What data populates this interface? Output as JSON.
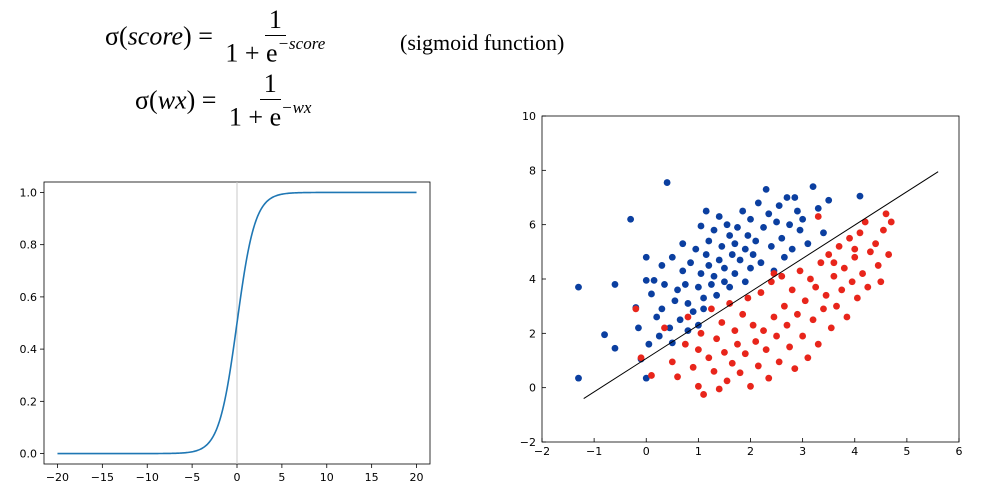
{
  "formulas": {
    "f1": {
      "lhs_prefix": "σ(",
      "lhs_var": "score",
      "lhs_suffix": ") =",
      "num": "1",
      "den_base": "1 + e",
      "den_exp": "−score"
    },
    "f2": {
      "lhs_prefix": "σ(",
      "lhs_var": "wx",
      "lhs_suffix": ") =",
      "num": "1",
      "den_base": "1 + e",
      "den_exp": "−wx"
    },
    "note": "(sigmoid function)"
  },
  "chart_data": [
    {
      "type": "line",
      "title": "",
      "xlabel": "",
      "ylabel": "",
      "xlim": [
        -21.5,
        21.5
      ],
      "ylim": [
        -0.04,
        1.04
      ],
      "xticks": [
        -20,
        -15,
        -10,
        -5,
        0,
        5,
        10,
        15,
        20
      ],
      "yticks": [
        0.0,
        0.2,
        0.4,
        0.6,
        0.8,
        1.0
      ],
      "xtick_labels": [
        "−20",
        "−15",
        "−10",
        "−5",
        "0",
        "5",
        "10",
        "15",
        "20"
      ],
      "ytick_labels": [
        "0.0",
        "0.2",
        "0.4",
        "0.6",
        "0.8",
        "1.0"
      ],
      "function": "sigmoid",
      "x_range": [
        -20,
        20
      ],
      "vertical_reference_line_x": 0,
      "line_color": "#1f77b4",
      "reference_line_color": "#c8c8c8",
      "grid": false
    },
    {
      "type": "scatter",
      "title": "",
      "xlabel": "",
      "ylabel": "",
      "xlim": [
        -2,
        6
      ],
      "ylim": [
        -2,
        10
      ],
      "xticks": [
        -2,
        -1,
        0,
        1,
        2,
        3,
        4,
        5,
        6
      ],
      "yticks": [
        -2,
        0,
        2,
        4,
        6,
        8,
        10
      ],
      "xtick_labels": [
        "−2",
        "−1",
        "0",
        "1",
        "2",
        "3",
        "4",
        "5",
        "6"
      ],
      "ytick_labels": [
        "−2",
        "0",
        "2",
        "4",
        "6",
        "8",
        "10"
      ],
      "grid": false,
      "decision_boundary": {
        "x": [
          -1.2,
          5.6
        ],
        "y": [
          -0.4,
          7.95
        ],
        "color": "#000000"
      },
      "series": [
        {
          "color": "#0b3fa0",
          "points": [
            [
              -1.3,
              3.7
            ],
            [
              -1.3,
              0.35
            ],
            [
              -0.8,
              1.95
            ],
            [
              -0.6,
              1.45
            ],
            [
              -0.6,
              3.8
            ],
            [
              -0.3,
              6.2
            ],
            [
              -0.2,
              2.95
            ],
            [
              -0.15,
              2.2
            ],
            [
              -0.1,
              1.05
            ],
            [
              0.0,
              0.35
            ],
            [
              0.0,
              3.95
            ],
            [
              0.0,
              4.8
            ],
            [
              0.05,
              1.6
            ],
            [
              0.1,
              3.45
            ],
            [
              0.15,
              3.95
            ],
            [
              0.2,
              2.6
            ],
            [
              0.25,
              1.9
            ],
            [
              0.3,
              4.5
            ],
            [
              0.3,
              2.9
            ],
            [
              0.35,
              3.8
            ],
            [
              0.4,
              7.55
            ],
            [
              0.45,
              2.2
            ],
            [
              0.5,
              4.8
            ],
            [
              0.5,
              1.65
            ],
            [
              0.55,
              3.2
            ],
            [
              0.6,
              3.6
            ],
            [
              0.65,
              2.5
            ],
            [
              0.7,
              5.3
            ],
            [
              0.7,
              4.3
            ],
            [
              0.75,
              3.8
            ],
            [
              0.8,
              3.1
            ],
            [
              0.8,
              2.1
            ],
            [
              0.85,
              4.6
            ],
            [
              0.9,
              2.8
            ],
            [
              0.95,
              5.1
            ],
            [
              1.0,
              3.7
            ],
            [
              1.0,
              2.3
            ],
            [
              1.05,
              5.95
            ],
            [
              1.05,
              4.2
            ],
            [
              1.1,
              3.3
            ],
            [
              1.1,
              2.9
            ],
            [
              1.15,
              4.9
            ],
            [
              1.15,
              6.5
            ],
            [
              1.2,
              5.4
            ],
            [
              1.2,
              4.5
            ],
            [
              1.25,
              3.8
            ],
            [
              1.3,
              4.1
            ],
            [
              1.3,
              5.8
            ],
            [
              1.35,
              3.4
            ],
            [
              1.4,
              4.7
            ],
            [
              1.4,
              6.3
            ],
            [
              1.45,
              5.2
            ],
            [
              1.5,
              3.9
            ],
            [
              1.5,
              4.4
            ],
            [
              1.55,
              6.0
            ],
            [
              1.6,
              5.6
            ],
            [
              1.6,
              3.7
            ],
            [
              1.65,
              4.9
            ],
            [
              1.7,
              5.3
            ],
            [
              1.7,
              4.2
            ],
            [
              1.75,
              5.9
            ],
            [
              1.8,
              4.7
            ],
            [
              1.85,
              6.5
            ],
            [
              1.9,
              5.1
            ],
            [
              1.9,
              3.9
            ],
            [
              1.95,
              5.6
            ],
            [
              2.0,
              4.4
            ],
            [
              2.0,
              6.2
            ],
            [
              2.05,
              4.9
            ],
            [
              2.1,
              5.4
            ],
            [
              2.15,
              6.8
            ],
            [
              2.2,
              4.6
            ],
            [
              2.25,
              5.9
            ],
            [
              2.3,
              7.3
            ],
            [
              2.35,
              6.4
            ],
            [
              2.4,
              5.2
            ],
            [
              2.45,
              4.3
            ],
            [
              2.5,
              6.1
            ],
            [
              2.55,
              6.7
            ],
            [
              2.6,
              5.5
            ],
            [
              2.65,
              4.8
            ],
            [
              2.7,
              7.0
            ],
            [
              2.75,
              6.0
            ],
            [
              2.8,
              5.1
            ],
            [
              2.85,
              7.0
            ],
            [
              2.9,
              6.5
            ],
            [
              2.95,
              5.8
            ],
            [
              3.0,
              6.2
            ],
            [
              3.1,
              5.3
            ],
            [
              3.2,
              7.4
            ],
            [
              3.3,
              6.6
            ],
            [
              3.4,
              5.7
            ],
            [
              3.5,
              6.9
            ],
            [
              4.1,
              7.05
            ]
          ]
        },
        {
          "color": "#e8251b",
          "points": [
            [
              -0.2,
              2.9
            ],
            [
              -0.1,
              1.1
            ],
            [
              0.1,
              0.45
            ],
            [
              0.35,
              2.2
            ],
            [
              0.5,
              0.95
            ],
            [
              0.6,
              0.4
            ],
            [
              0.75,
              1.6
            ],
            [
              0.8,
              2.6
            ],
            [
              0.9,
              0.75
            ],
            [
              1.0,
              1.4
            ],
            [
              1.0,
              0.05
            ],
            [
              1.05,
              2.0
            ],
            [
              1.1,
              -0.25
            ],
            [
              1.2,
              1.1
            ],
            [
              1.25,
              2.9
            ],
            [
              1.3,
              0.6
            ],
            [
              1.35,
              1.8
            ],
            [
              1.4,
              -0.05
            ],
            [
              1.45,
              2.4
            ],
            [
              1.5,
              1.3
            ],
            [
              1.55,
              0.25
            ],
            [
              1.6,
              3.1
            ],
            [
              1.65,
              0.9
            ],
            [
              1.7,
              2.1
            ],
            [
              1.75,
              1.6
            ],
            [
              1.8,
              0.55
            ],
            [
              1.85,
              2.7
            ],
            [
              1.9,
              1.25
            ],
            [
              1.95,
              3.3
            ],
            [
              2.0,
              0.05
            ],
            [
              2.05,
              2.3
            ],
            [
              2.1,
              1.7
            ],
            [
              2.15,
              0.8
            ],
            [
              2.2,
              3.5
            ],
            [
              2.25,
              2.1
            ],
            [
              2.3,
              1.4
            ],
            [
              2.35,
              0.35
            ],
            [
              2.4,
              3.9
            ],
            [
              2.45,
              2.6
            ],
            [
              2.5,
              1.9
            ],
            [
              2.55,
              0.95
            ],
            [
              2.6,
              4.1
            ],
            [
              2.65,
              3.0
            ],
            [
              2.7,
              2.3
            ],
            [
              2.75,
              1.5
            ],
            [
              2.8,
              3.6
            ],
            [
              2.85,
              0.7
            ],
            [
              2.9,
              2.7
            ],
            [
              2.95,
              4.3
            ],
            [
              3.0,
              1.9
            ],
            [
              3.05,
              3.2
            ],
            [
              3.1,
              1.1
            ],
            [
              3.15,
              4.0
            ],
            [
              3.2,
              2.5
            ],
            [
              3.25,
              3.7
            ],
            [
              3.3,
              1.6
            ],
            [
              3.35,
              4.6
            ],
            [
              3.4,
              2.9
            ],
            [
              3.45,
              3.4
            ],
            [
              3.5,
              4.9
            ],
            [
              3.55,
              2.2
            ],
            [
              3.6,
              4.1
            ],
            [
              3.65,
              3.0
            ],
            [
              3.7,
              5.2
            ],
            [
              3.75,
              3.6
            ],
            [
              3.8,
              4.4
            ],
            [
              3.85,
              2.6
            ],
            [
              3.9,
              5.5
            ],
            [
              3.95,
              3.9
            ],
            [
              4.0,
              4.8
            ],
            [
              4.05,
              3.3
            ],
            [
              4.1,
              5.7
            ],
            [
              4.15,
              4.2
            ],
            [
              4.2,
              6.1
            ],
            [
              4.25,
              3.7
            ],
            [
              4.3,
              5.0
            ],
            [
              4.4,
              5.3
            ],
            [
              4.45,
              4.5
            ],
            [
              4.5,
              3.9
            ],
            [
              4.55,
              5.8
            ],
            [
              4.6,
              6.4
            ],
            [
              4.65,
              4.9
            ],
            [
              4.7,
              6.1
            ],
            [
              3.3,
              6.3
            ],
            [
              3.6,
              4.6
            ],
            [
              4.0,
              5.1
            ],
            [
              2.45,
              4.2
            ]
          ]
        }
      ]
    }
  ]
}
